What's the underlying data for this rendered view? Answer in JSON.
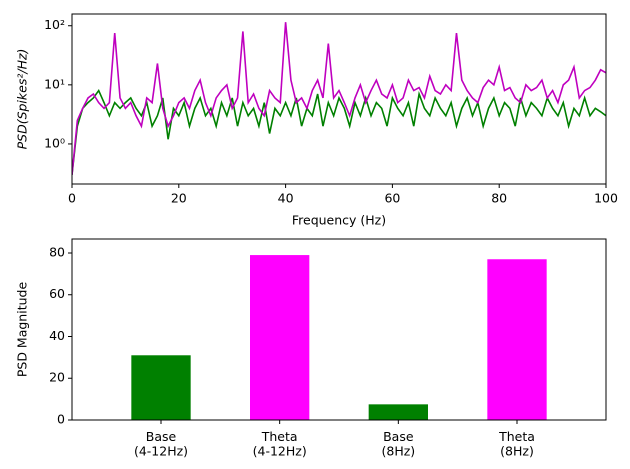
{
  "chart_data": [
    {
      "type": "line",
      "yscale": "log",
      "ylabel": "PSD(Spikes²/Hz)",
      "xlabel": "Frequency (Hz)",
      "x": [
        0,
        1,
        2,
        3,
        4,
        5,
        6,
        7,
        8,
        9,
        10,
        11,
        12,
        13,
        14,
        15,
        16,
        17,
        18,
        19,
        20,
        21,
        22,
        23,
        24,
        25,
        26,
        27,
        28,
        29,
        30,
        31,
        32,
        33,
        34,
        35,
        36,
        37,
        38,
        39,
        40,
        41,
        42,
        43,
        44,
        45,
        46,
        47,
        48,
        49,
        50,
        51,
        52,
        53,
        54,
        55,
        56,
        57,
        58,
        59,
        60,
        61,
        62,
        63,
        64,
        65,
        66,
        67,
        68,
        69,
        70,
        71,
        72,
        73,
        74,
        75,
        76,
        77,
        78,
        79,
        80,
        81,
        82,
        83,
        84,
        85,
        86,
        87,
        88,
        89,
        90,
        91,
        92,
        93,
        94,
        95,
        96,
        97,
        98,
        99,
        100
      ],
      "series": [
        {
          "color": "#008000",
          "values": [
            0.3,
            2,
            4,
            5,
            6,
            8,
            5,
            3,
            5,
            4,
            5,
            6,
            4,
            3,
            5,
            2,
            3,
            6,
            1.2,
            4,
            3,
            5,
            2,
            4,
            6,
            3,
            4,
            2,
            5,
            3,
            6,
            2,
            5,
            3,
            4,
            2,
            5,
            1.5,
            4,
            3,
            5,
            3,
            6,
            2,
            4,
            3,
            7,
            2,
            5,
            3,
            6,
            4,
            2,
            5,
            3,
            6,
            3,
            5,
            4,
            2,
            6,
            4,
            3,
            5,
            2,
            7,
            4,
            3,
            6,
            4,
            3,
            5,
            2,
            4,
            6,
            3,
            5,
            2,
            4,
            6,
            3,
            5,
            4,
            2,
            6,
            3,
            5,
            4,
            3,
            6,
            4,
            3,
            5,
            2,
            4,
            3,
            6,
            3,
            4,
            3.5,
            3
          ]
        },
        {
          "color": "#bf00bf",
          "values": [
            0.3,
            2.5,
            4,
            6,
            7,
            5,
            4,
            5,
            75,
            6,
            4,
            5,
            3,
            2,
            6,
            5,
            23,
            4,
            2,
            3,
            5,
            6,
            4,
            8,
            12,
            5,
            3,
            6,
            8,
            10,
            4,
            6,
            80,
            5,
            7,
            4,
            3,
            8,
            6,
            5,
            115,
            12,
            5,
            6,
            4,
            8,
            12,
            6,
            50,
            6,
            8,
            5,
            3,
            6,
            10,
            5,
            8,
            12,
            7,
            6,
            10,
            5,
            6,
            12,
            8,
            9,
            6,
            14,
            8,
            7,
            10,
            8,
            75,
            12,
            8,
            6,
            5,
            9,
            12,
            10,
            20,
            8,
            9,
            6,
            5,
            10,
            8,
            9,
            12,
            6,
            8,
            5,
            10,
            12,
            20,
            6,
            8,
            9,
            12,
            18,
            16
          ]
        }
      ],
      "xlim": [
        0,
        100
      ],
      "xticks": [
        0,
        20,
        40,
        60,
        80,
        100
      ],
      "ylim": [
        0.21,
        158
      ],
      "yticks": [
        {
          "value": 1,
          "label": "10⁰"
        },
        {
          "value": 10,
          "label": "10¹"
        },
        {
          "value": 100,
          "label": "10²"
        }
      ]
    },
    {
      "type": "bar",
      "ylabel": "PSD Magnitude",
      "categories": [
        "Base\n(4-12Hz)",
        "Theta\n(4-12Hz)",
        "Base\n(8Hz)",
        "Theta\n(8Hz)"
      ],
      "values": [
        31,
        79,
        7.5,
        77
      ],
      "colors": [
        "#008000",
        "#ff00ff",
        "#008000",
        "#ff00ff"
      ],
      "ylim": [
        0,
        86.7
      ],
      "yticks": [
        0,
        20,
        40,
        60,
        80
      ]
    }
  ]
}
